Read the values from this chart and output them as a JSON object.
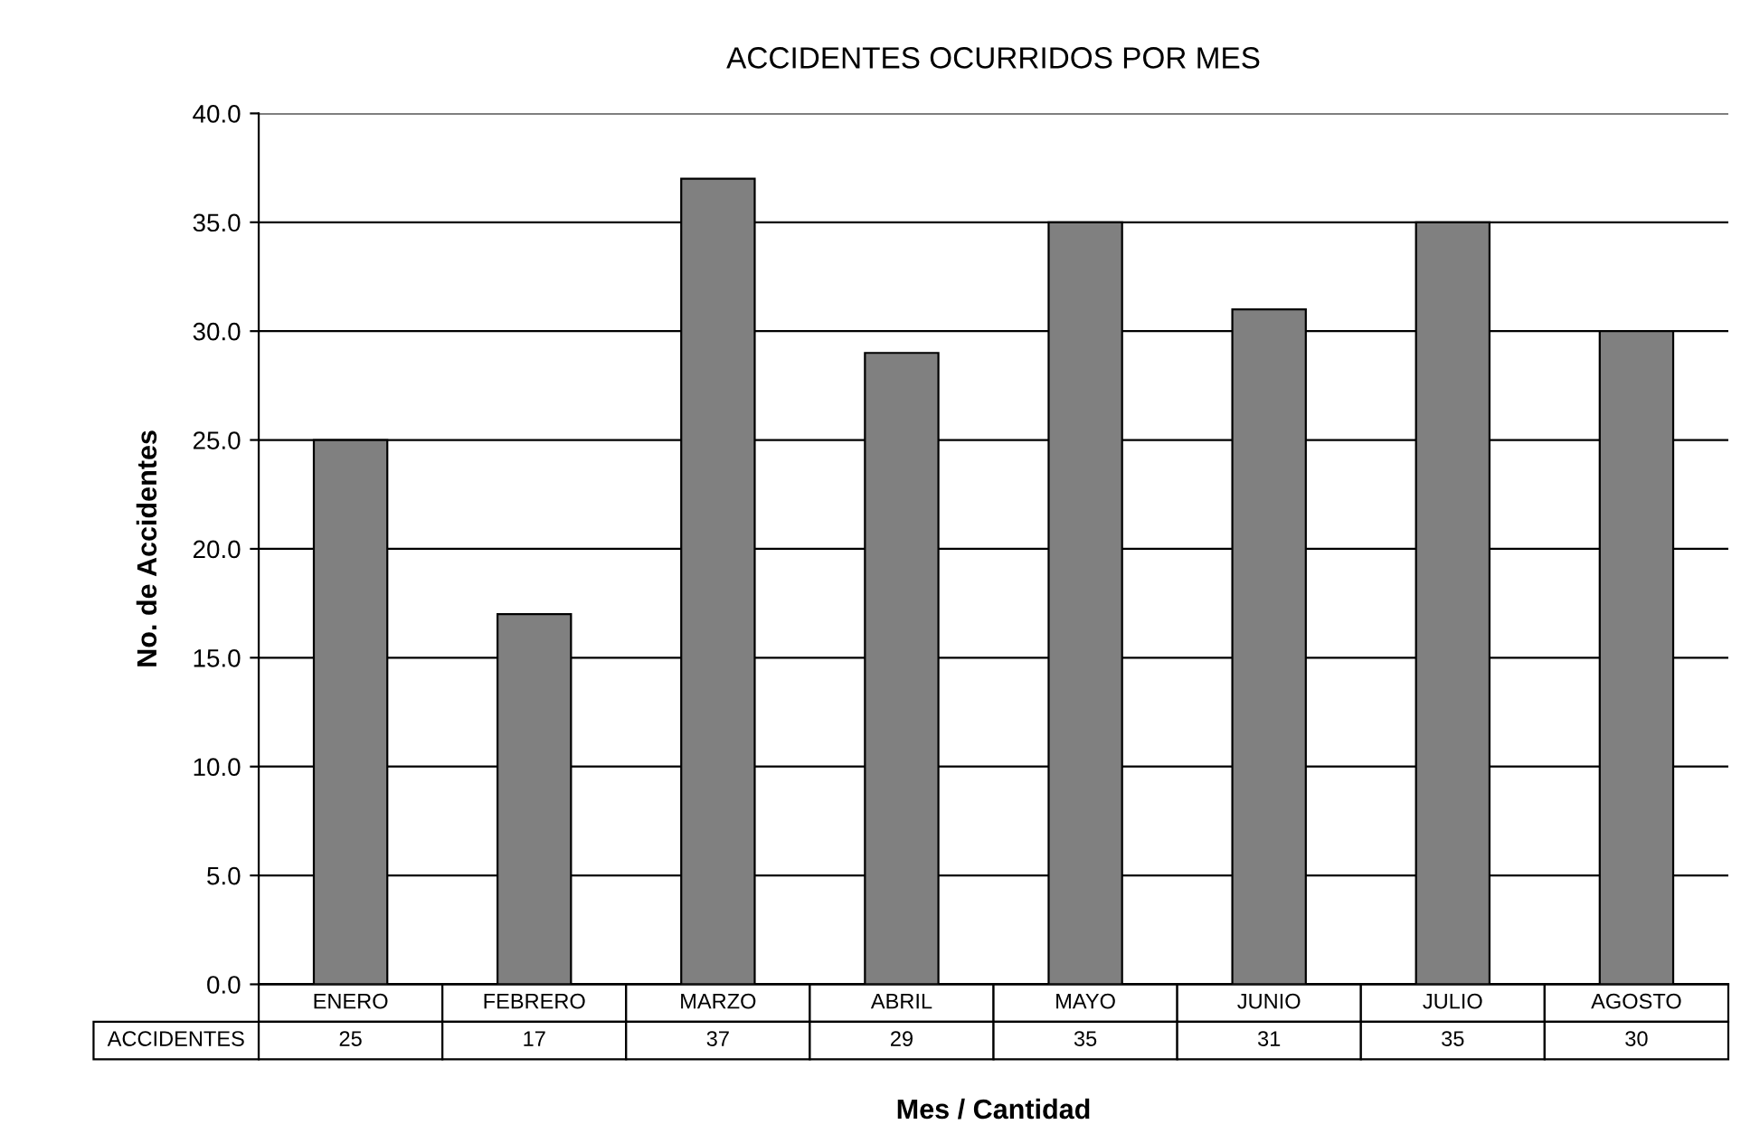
{
  "chart_data": {
    "type": "bar",
    "title": "ACCIDENTES OCURRIDOS POR MES",
    "xlabel": "Mes / Cantidad",
    "ylabel": "No. de Accidentes",
    "categories": [
      "ENERO",
      "FEBRERO",
      "MARZO",
      "ABRIL",
      "MAYO",
      "JUNIO",
      "JULIO",
      "AGOSTO"
    ],
    "series": [
      {
        "name": "ACCIDENTES",
        "color": "#808080",
        "values": [
          25,
          17,
          37,
          29,
          35,
          31,
          35,
          30
        ]
      }
    ],
    "ylim": [
      0,
      40
    ],
    "yticks": [
      {
        "value": 0,
        "label": "0.0"
      },
      {
        "value": 5,
        "label": "5.0"
      },
      {
        "value": 10,
        "label": "10.0"
      },
      {
        "value": 15,
        "label": "15.0"
      },
      {
        "value": 20,
        "label": "20.0"
      },
      {
        "value": 25,
        "label": "25.0"
      },
      {
        "value": 30,
        "label": "30.0"
      },
      {
        "value": 35,
        "label": "35.0"
      },
      {
        "value": 40,
        "label": "40.0"
      }
    ],
    "grid": "y",
    "data_labels": true
  }
}
